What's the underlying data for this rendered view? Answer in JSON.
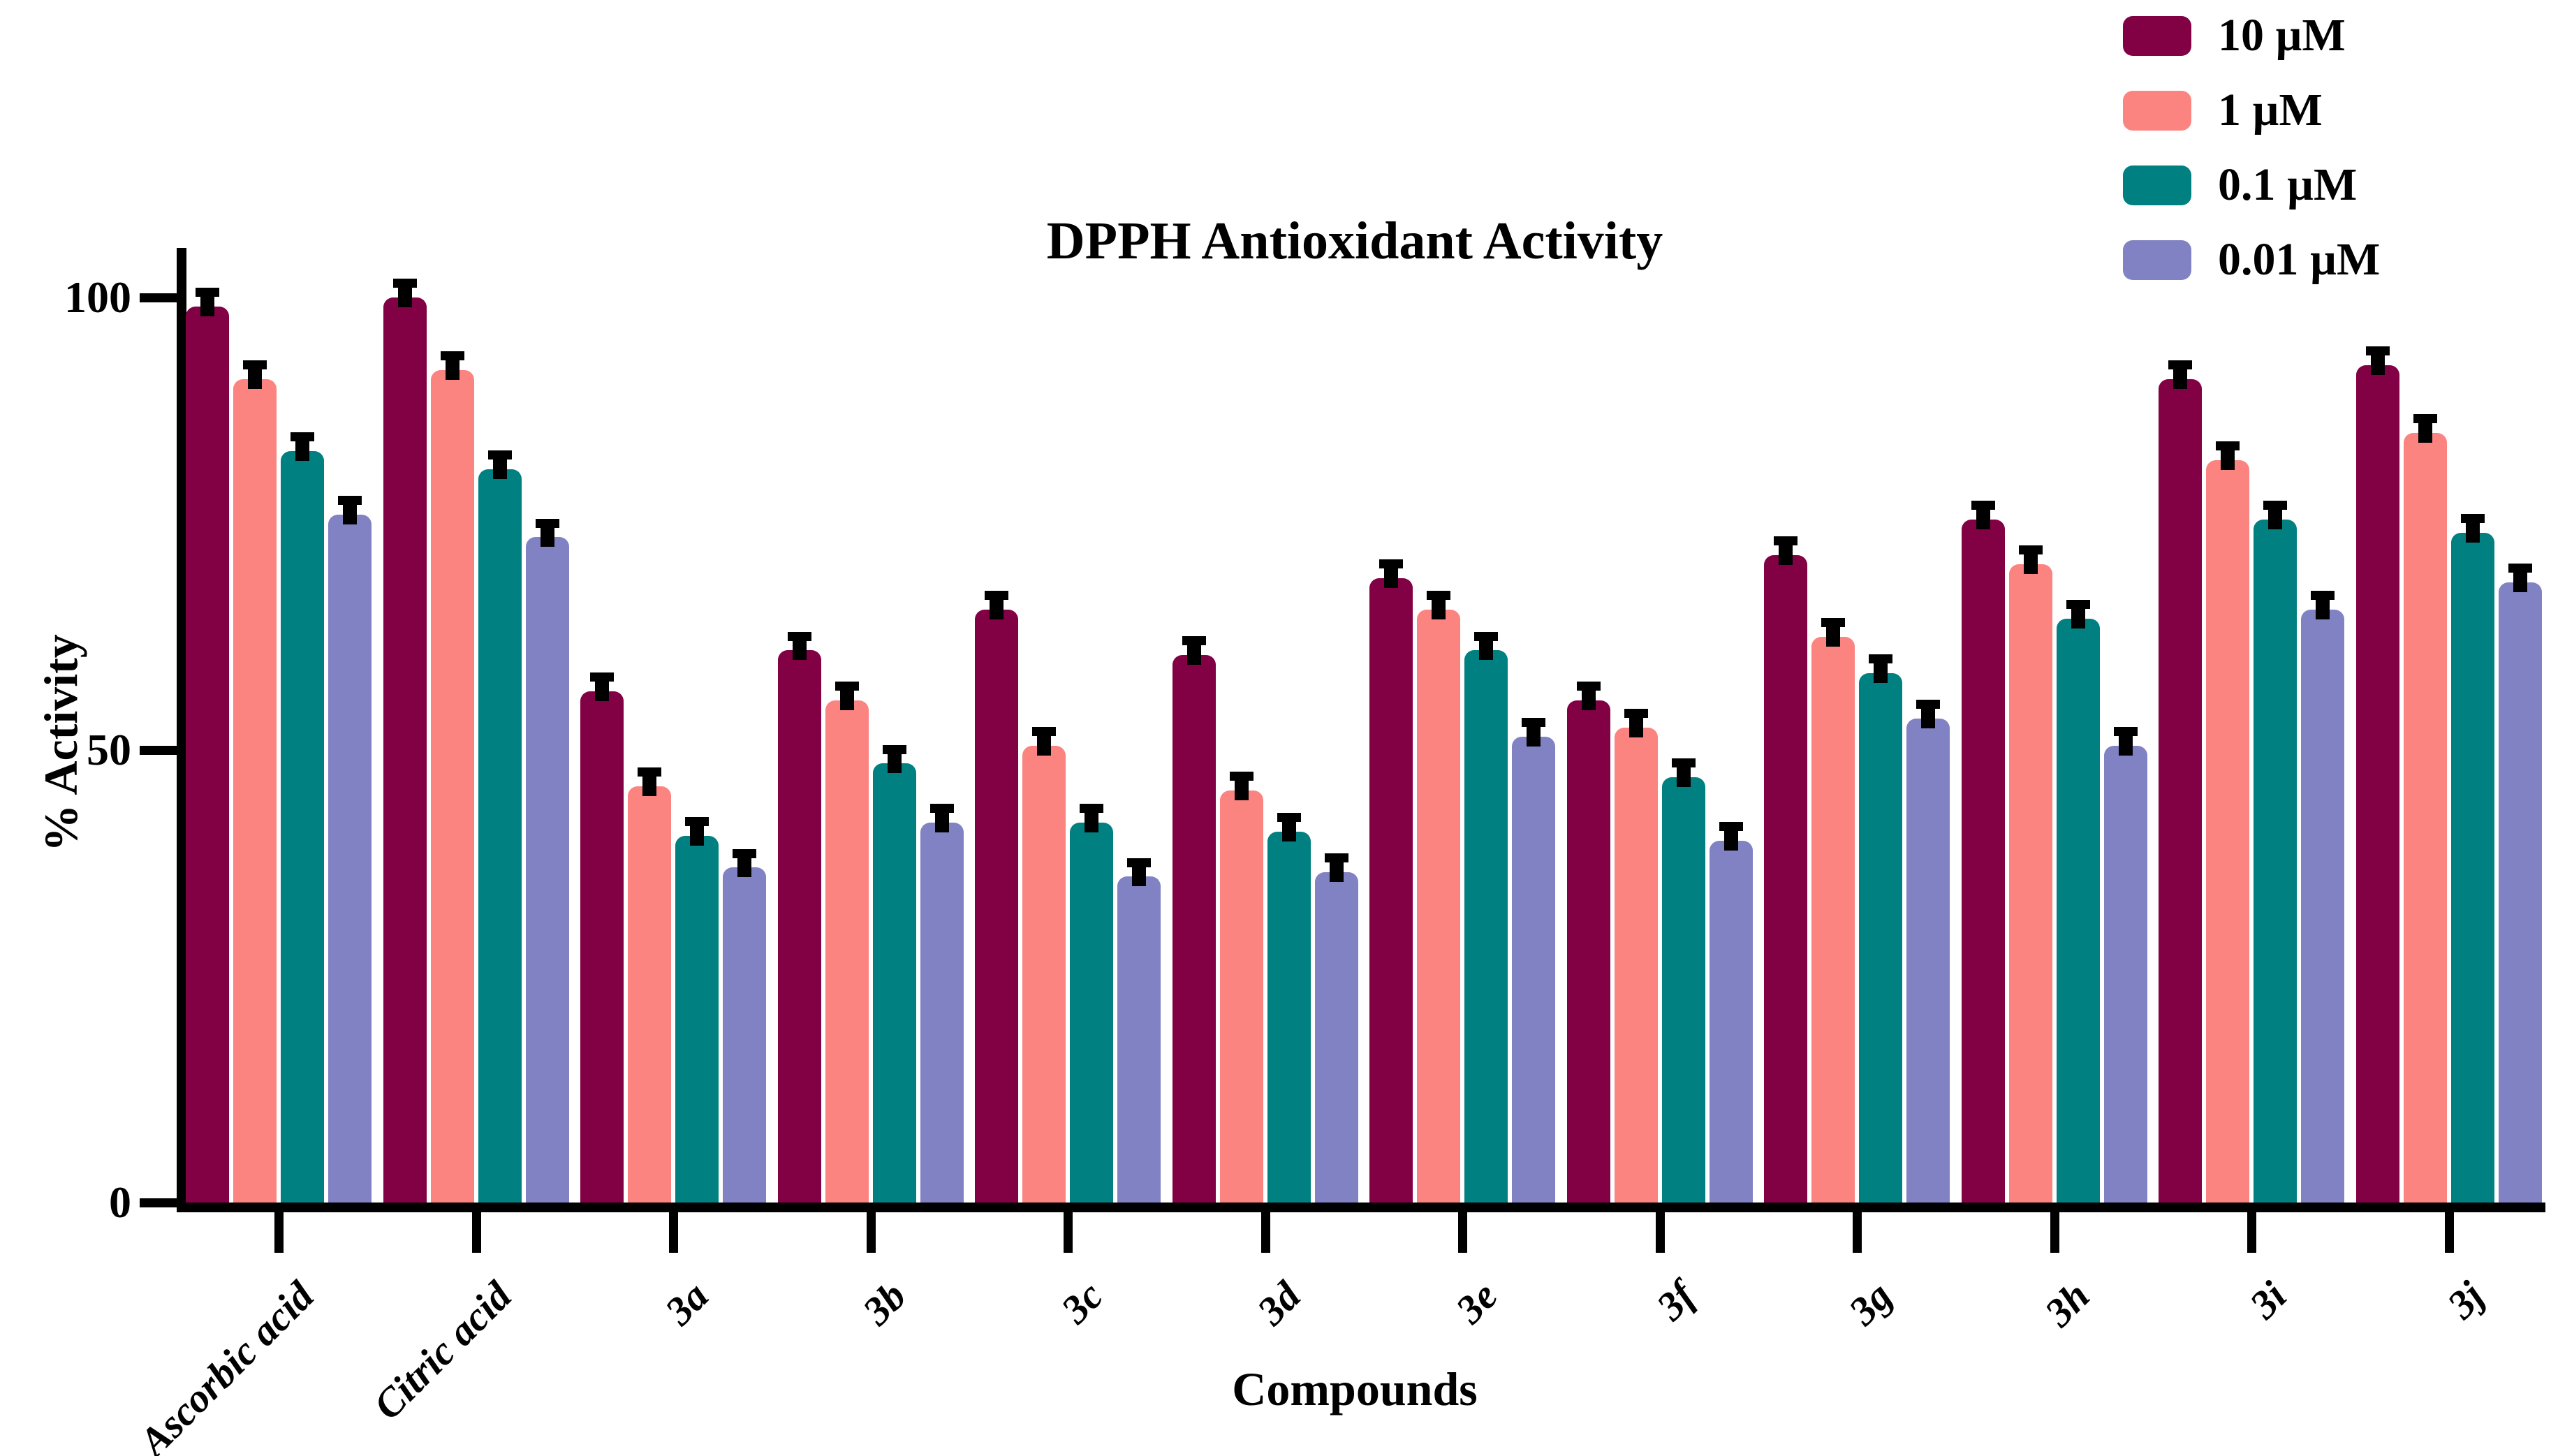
{
  "chart_data": {
    "type": "bar",
    "title": "DPPH Antioxidant Activity",
    "xlabel": "Compounds",
    "ylabel": "% Activity",
    "ylim": [
      0,
      105
    ],
    "yticks": [
      0,
      50,
      100
    ],
    "grid": false,
    "legend_position": "top-right",
    "error_bars": true,
    "error_bar_units": 2,
    "categories": [
      "Ascorbic acid",
      "Citric acid",
      "3a",
      "3b",
      "3c",
      "3d",
      "3e",
      "3f",
      "3g",
      "3h",
      "3i",
      "3j"
    ],
    "series": [
      {
        "name": "10 µM",
        "color": "#820044",
        "values": [
          99,
          100,
          56.5,
          61,
          65.5,
          60.5,
          69,
          55.5,
          71.5,
          75.5,
          91,
          92.5
        ]
      },
      {
        "name": "1 µM",
        "color": "#FB8380",
        "values": [
          91,
          92,
          46,
          55.5,
          50.5,
          45.5,
          65.5,
          52.5,
          62.5,
          70.5,
          82,
          85
        ]
      },
      {
        "name": "0.1 µM",
        "color": "#008080",
        "values": [
          83,
          81,
          40.5,
          48.5,
          42,
          41,
          61,
          47,
          58.5,
          64.5,
          75.5,
          74
        ]
      },
      {
        "name": "0.01 µM",
        "color": "#8182C3",
        "values": [
          76,
          73.5,
          37,
          42,
          36,
          36.5,
          51.5,
          40,
          53.5,
          50.5,
          65.5,
          68.5
        ]
      }
    ],
    "colors": {
      "axis": "#000000",
      "background": "#FFFFFF",
      "error_bar": "#000000"
    }
  }
}
